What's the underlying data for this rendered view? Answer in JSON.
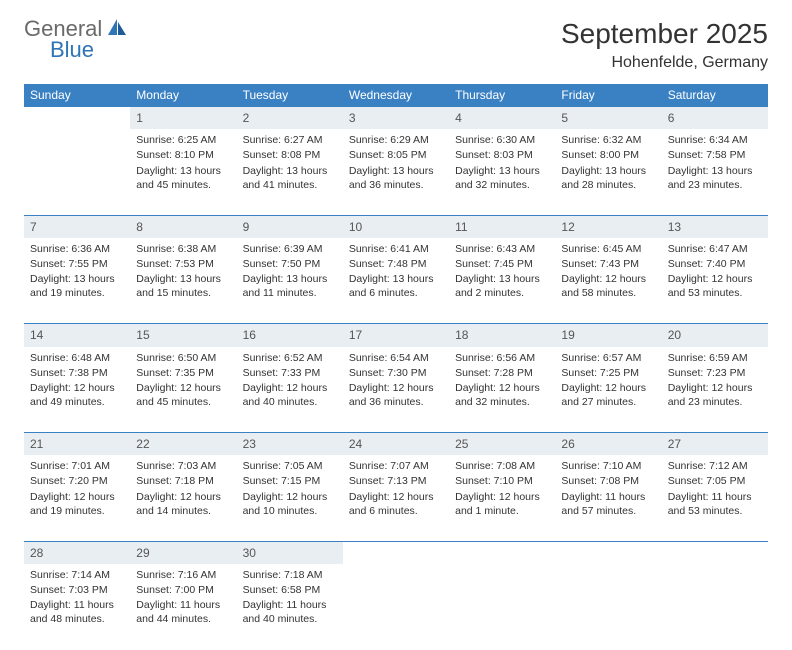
{
  "brand": {
    "word1": "General",
    "word2": "Blue"
  },
  "title": "September 2025",
  "location": "Hohenfelde, Germany",
  "colors": {
    "header_bg": "#3a81c4",
    "daynum_bg": "#e9eef2",
    "accent": "#2f74b5",
    "text": "#333333"
  },
  "weekdays": [
    "Sunday",
    "Monday",
    "Tuesday",
    "Wednesday",
    "Thursday",
    "Friday",
    "Saturday"
  ],
  "weeks": [
    [
      null,
      {
        "n": "1",
        "sr": "Sunrise: 6:25 AM",
        "ss": "Sunset: 8:10 PM",
        "dl": "Daylight: 13 hours and 45 minutes."
      },
      {
        "n": "2",
        "sr": "Sunrise: 6:27 AM",
        "ss": "Sunset: 8:08 PM",
        "dl": "Daylight: 13 hours and 41 minutes."
      },
      {
        "n": "3",
        "sr": "Sunrise: 6:29 AM",
        "ss": "Sunset: 8:05 PM",
        "dl": "Daylight: 13 hours and 36 minutes."
      },
      {
        "n": "4",
        "sr": "Sunrise: 6:30 AM",
        "ss": "Sunset: 8:03 PM",
        "dl": "Daylight: 13 hours and 32 minutes."
      },
      {
        "n": "5",
        "sr": "Sunrise: 6:32 AM",
        "ss": "Sunset: 8:00 PM",
        "dl": "Daylight: 13 hours and 28 minutes."
      },
      {
        "n": "6",
        "sr": "Sunrise: 6:34 AM",
        "ss": "Sunset: 7:58 PM",
        "dl": "Daylight: 13 hours and 23 minutes."
      }
    ],
    [
      {
        "n": "7",
        "sr": "Sunrise: 6:36 AM",
        "ss": "Sunset: 7:55 PM",
        "dl": "Daylight: 13 hours and 19 minutes."
      },
      {
        "n": "8",
        "sr": "Sunrise: 6:38 AM",
        "ss": "Sunset: 7:53 PM",
        "dl": "Daylight: 13 hours and 15 minutes."
      },
      {
        "n": "9",
        "sr": "Sunrise: 6:39 AM",
        "ss": "Sunset: 7:50 PM",
        "dl": "Daylight: 13 hours and 11 minutes."
      },
      {
        "n": "10",
        "sr": "Sunrise: 6:41 AM",
        "ss": "Sunset: 7:48 PM",
        "dl": "Daylight: 13 hours and 6 minutes."
      },
      {
        "n": "11",
        "sr": "Sunrise: 6:43 AM",
        "ss": "Sunset: 7:45 PM",
        "dl": "Daylight: 13 hours and 2 minutes."
      },
      {
        "n": "12",
        "sr": "Sunrise: 6:45 AM",
        "ss": "Sunset: 7:43 PM",
        "dl": "Daylight: 12 hours and 58 minutes."
      },
      {
        "n": "13",
        "sr": "Sunrise: 6:47 AM",
        "ss": "Sunset: 7:40 PM",
        "dl": "Daylight: 12 hours and 53 minutes."
      }
    ],
    [
      {
        "n": "14",
        "sr": "Sunrise: 6:48 AM",
        "ss": "Sunset: 7:38 PM",
        "dl": "Daylight: 12 hours and 49 minutes."
      },
      {
        "n": "15",
        "sr": "Sunrise: 6:50 AM",
        "ss": "Sunset: 7:35 PM",
        "dl": "Daylight: 12 hours and 45 minutes."
      },
      {
        "n": "16",
        "sr": "Sunrise: 6:52 AM",
        "ss": "Sunset: 7:33 PM",
        "dl": "Daylight: 12 hours and 40 minutes."
      },
      {
        "n": "17",
        "sr": "Sunrise: 6:54 AM",
        "ss": "Sunset: 7:30 PM",
        "dl": "Daylight: 12 hours and 36 minutes."
      },
      {
        "n": "18",
        "sr": "Sunrise: 6:56 AM",
        "ss": "Sunset: 7:28 PM",
        "dl": "Daylight: 12 hours and 32 minutes."
      },
      {
        "n": "19",
        "sr": "Sunrise: 6:57 AM",
        "ss": "Sunset: 7:25 PM",
        "dl": "Daylight: 12 hours and 27 minutes."
      },
      {
        "n": "20",
        "sr": "Sunrise: 6:59 AM",
        "ss": "Sunset: 7:23 PM",
        "dl": "Daylight: 12 hours and 23 minutes."
      }
    ],
    [
      {
        "n": "21",
        "sr": "Sunrise: 7:01 AM",
        "ss": "Sunset: 7:20 PM",
        "dl": "Daylight: 12 hours and 19 minutes."
      },
      {
        "n": "22",
        "sr": "Sunrise: 7:03 AM",
        "ss": "Sunset: 7:18 PM",
        "dl": "Daylight: 12 hours and 14 minutes."
      },
      {
        "n": "23",
        "sr": "Sunrise: 7:05 AM",
        "ss": "Sunset: 7:15 PM",
        "dl": "Daylight: 12 hours and 10 minutes."
      },
      {
        "n": "24",
        "sr": "Sunrise: 7:07 AM",
        "ss": "Sunset: 7:13 PM",
        "dl": "Daylight: 12 hours and 6 minutes."
      },
      {
        "n": "25",
        "sr": "Sunrise: 7:08 AM",
        "ss": "Sunset: 7:10 PM",
        "dl": "Daylight: 12 hours and 1 minute."
      },
      {
        "n": "26",
        "sr": "Sunrise: 7:10 AM",
        "ss": "Sunset: 7:08 PM",
        "dl": "Daylight: 11 hours and 57 minutes."
      },
      {
        "n": "27",
        "sr": "Sunrise: 7:12 AM",
        "ss": "Sunset: 7:05 PM",
        "dl": "Daylight: 11 hours and 53 minutes."
      }
    ],
    [
      {
        "n": "28",
        "sr": "Sunrise: 7:14 AM",
        "ss": "Sunset: 7:03 PM",
        "dl": "Daylight: 11 hours and 48 minutes."
      },
      {
        "n": "29",
        "sr": "Sunrise: 7:16 AM",
        "ss": "Sunset: 7:00 PM",
        "dl": "Daylight: 11 hours and 44 minutes."
      },
      {
        "n": "30",
        "sr": "Sunrise: 7:18 AM",
        "ss": "Sunset: 6:58 PM",
        "dl": "Daylight: 11 hours and 40 minutes."
      },
      null,
      null,
      null,
      null
    ]
  ]
}
